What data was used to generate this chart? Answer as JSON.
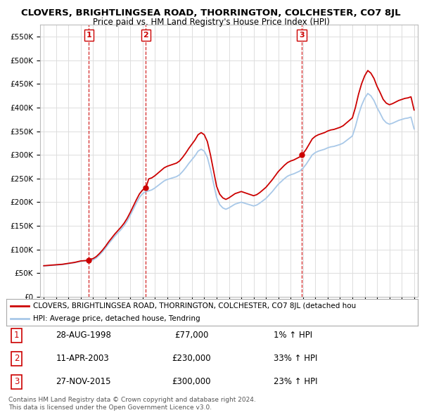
{
  "title": "CLOVERS, BRIGHTLINGSEA ROAD, THORRINGTON, COLCHESTER, CO7 8JL",
  "subtitle": "Price paid vs. HM Land Registry's House Price Index (HPI)",
  "legend_line1": "CLOVERS, BRIGHTLINGSEA ROAD, THORRINGTON, COLCHESTER, CO7 8JL (detached hou",
  "legend_line2": "HPI: Average price, detached house, Tendring",
  "footer1": "Contains HM Land Registry data © Crown copyright and database right 2024.",
  "footer2": "This data is licensed under the Open Government Licence v3.0.",
  "sales": [
    {
      "num": 1,
      "date": "28-AUG-1998",
      "price": 77000,
      "pct": "1%",
      "dir": "↑"
    },
    {
      "num": 2,
      "date": "11-APR-2003",
      "price": 230000,
      "pct": "33%",
      "dir": "↑"
    },
    {
      "num": 3,
      "date": "27-NOV-2015",
      "price": 300000,
      "pct": "23%",
      "dir": "↑"
    }
  ],
  "sale_years": [
    1998.65,
    2003.27,
    2015.9
  ],
  "sale_prices": [
    77000,
    230000,
    300000
  ],
  "hpi_color": "#a8c8e8",
  "price_color": "#cc0000",
  "dashed_color": "#cc0000",
  "background_color": "#ffffff",
  "grid_color": "#dddddd",
  "ylim": [
    0,
    575000
  ],
  "yticks": [
    0,
    50000,
    100000,
    150000,
    200000,
    250000,
    300000,
    350000,
    400000,
    450000,
    500000,
    550000
  ],
  "xlim_start": 1994.7,
  "xlim_end": 2025.3
}
